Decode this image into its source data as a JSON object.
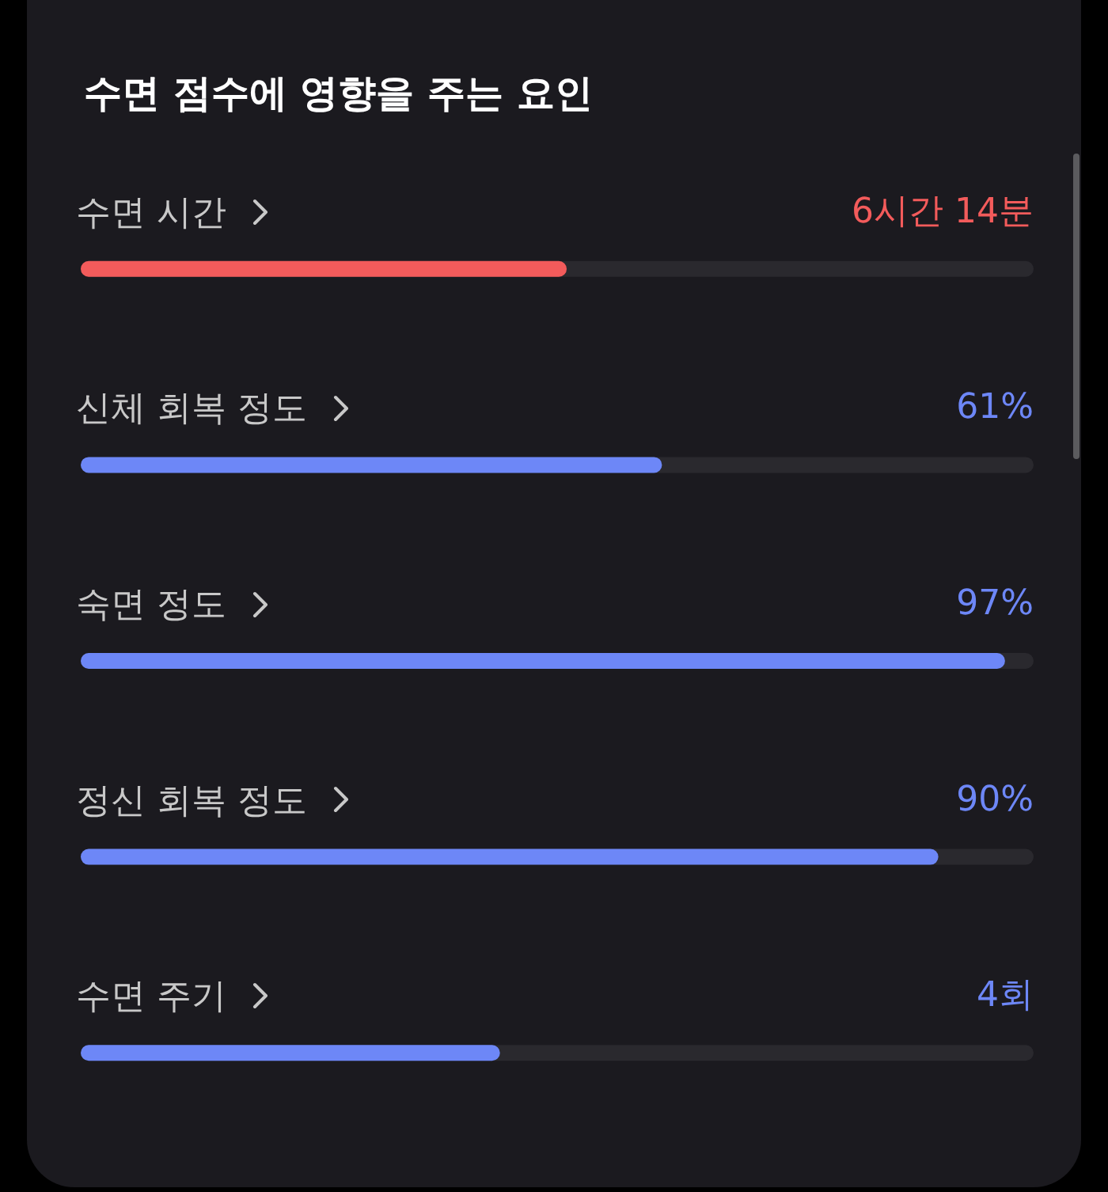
{
  "chart_data": {
    "type": "bar",
    "orientation": "horizontal",
    "title": "수면 점수에 영향을 주는 요인",
    "categories": [
      "수면 시간",
      "신체 회복 정도",
      "숙면 정도",
      "정신 회복 정도",
      "수면 주기"
    ],
    "values": [
      51,
      61,
      97,
      90,
      44
    ],
    "colors": [
      "#f35b5b",
      "#6d87f7",
      "#6d87f7",
      "#6d87f7",
      "#6d87f7"
    ],
    "xlim": [
      0,
      100
    ],
    "value_labels": [
      null,
      "61%",
      "97%",
      "90%",
      null
    ],
    "annotations": [
      "6시간 14분",
      "4회"
    ],
    "tick_labels": "y"
  }
}
